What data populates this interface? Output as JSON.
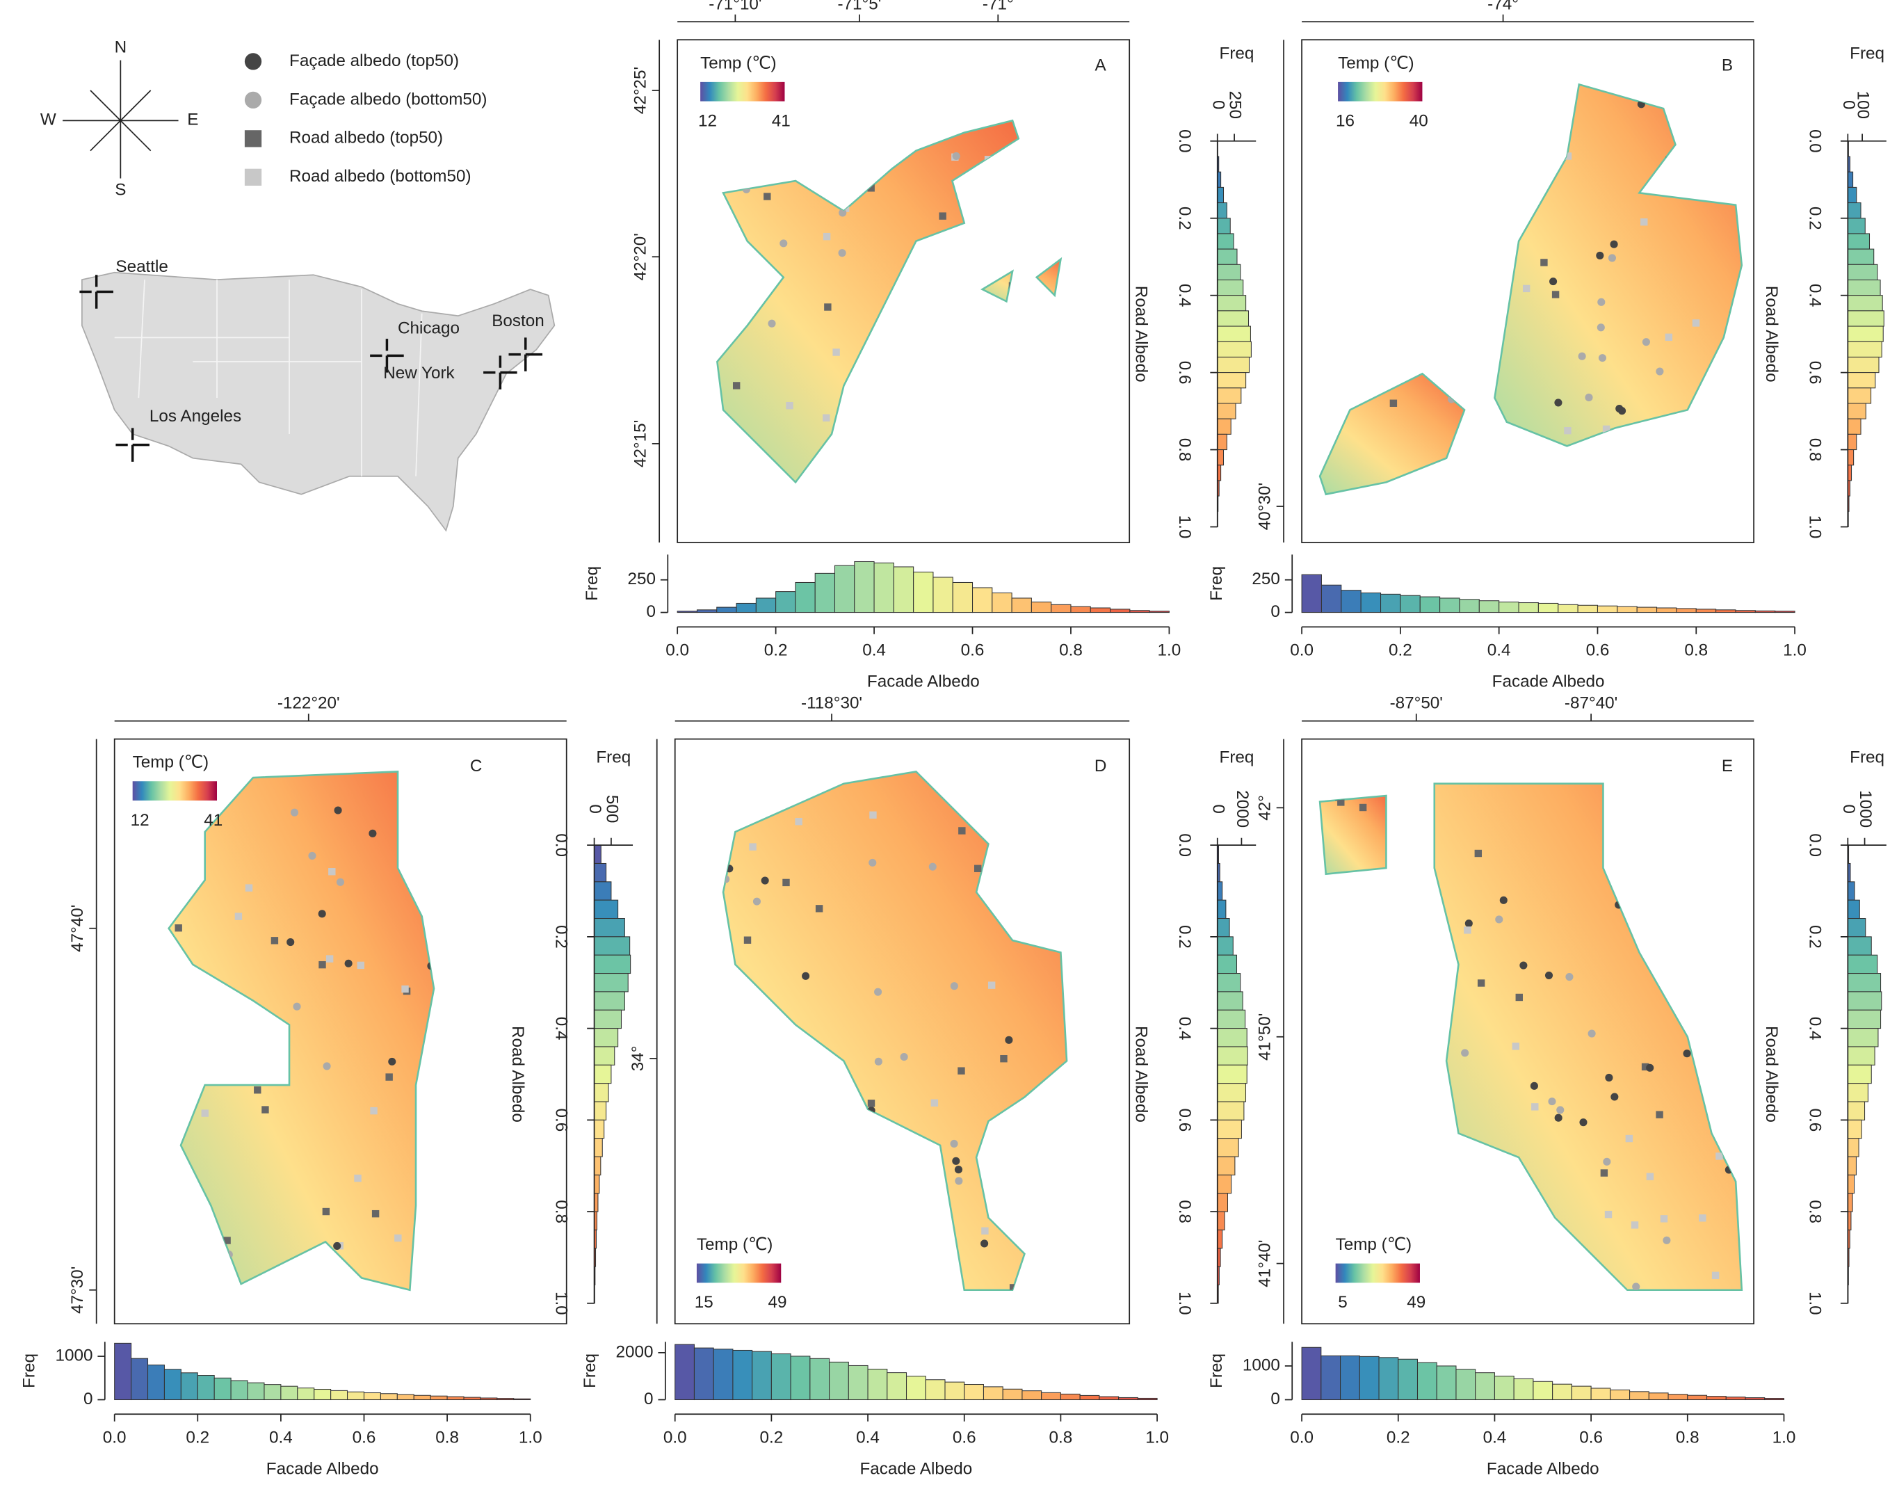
{
  "legend": {
    "compass": {
      "n": "N",
      "s": "S",
      "e": "E",
      "w": "W"
    },
    "items": [
      {
        "label": "Façade albedo (top50)"
      },
      {
        "label": "Façade albedo (bottom50)"
      },
      {
        "label": "Road albedo (top50)"
      },
      {
        "label": "Road albedo (bottom50)"
      }
    ]
  },
  "overview_map": {
    "cities": [
      "Seattle",
      "Chicago",
      "Boston",
      "New York",
      "Los Angeles"
    ]
  },
  "colormap": [
    "#5e4fa2",
    "#3288bd",
    "#66c2a5",
    "#abdda4",
    "#e6f598",
    "#fee08b",
    "#fdae61",
    "#f46d43",
    "#d53e4f",
    "#9e0142"
  ],
  "maps": [
    {
      "letter": "A",
      "lon_labels": [
        "-71°10'",
        "-71°5'",
        "-71°"
      ],
      "lat_labels": [
        "42°25'",
        "42°20'",
        "42°15'"
      ],
      "colorbar": {
        "title": "Temp (℃)",
        "min": 12,
        "max": 41
      }
    },
    {
      "letter": "B",
      "lon_labels": [
        "-74°"
      ],
      "lat_labels": [
        "40°30'"
      ],
      "colorbar": {
        "title": "Temp (℃)",
        "min": 16,
        "max": 40
      }
    },
    {
      "letter": "C",
      "lon_labels": [
        "-122°20'"
      ],
      "lat_labels": [
        "47°40'",
        "47°30'"
      ],
      "colorbar": {
        "title": "Temp (℃)",
        "min": 12,
        "max": 41
      }
    },
    {
      "letter": "D",
      "lon_labels": [
        "-118°30'"
      ],
      "lat_labels": [
        "34°"
      ],
      "colorbar": {
        "title": "Temp (℃)",
        "min": 15,
        "max": 49
      }
    },
    {
      "letter": "E",
      "lon_labels": [
        "-87°50'",
        "-87°40'"
      ],
      "lat_labels": [
        "42°",
        "41°50'",
        "41°40'"
      ],
      "colorbar": {
        "title": "Temp (℃)",
        "min": 5,
        "max": 49
      }
    }
  ],
  "chart_data": [
    {
      "type": "histogram",
      "orientation": "vertical",
      "x_label": "Facade Albedo",
      "y_label": "Freq",
      "bins": [
        0,
        0.04,
        0.08,
        0.12,
        0.16,
        0.2,
        0.24,
        0.28,
        0.32,
        0.36,
        0.4,
        0.44,
        0.48,
        0.52,
        0.56,
        0.6,
        0.64,
        0.68,
        0.72,
        0.76,
        0.8,
        0.84,
        0.88,
        0.92,
        0.96,
        1
      ],
      "values": [
        10,
        20,
        40,
        70,
        110,
        160,
        230,
        300,
        360,
        390,
        380,
        350,
        310,
        270,
        230,
        190,
        150,
        110,
        80,
        60,
        45,
        35,
        25,
        15,
        10
      ],
      "xlim": [
        0,
        1
      ],
      "xticks": [
        {
          "value": 0,
          "label": "0.0"
        },
        0.2,
        0.4,
        0.6,
        0.8,
        {
          "value": 1,
          "label": "1.0"
        }
      ],
      "ylim": [
        0,
        444
      ],
      "yticks": [
        0,
        250
      ]
    },
    {
      "type": "histogram",
      "orientation": "vertical",
      "x_label": "Facade Albedo",
      "y_label": "Freq",
      "bins": [
        0,
        0.04,
        0.08,
        0.12,
        0.16,
        0.2,
        0.24,
        0.28,
        0.32,
        0.36,
        0.4,
        0.44,
        0.48,
        0.52,
        0.56,
        0.6,
        0.64,
        0.68,
        0.72,
        0.76,
        0.8,
        0.84,
        0.88,
        0.92,
        0.96,
        1
      ],
      "values": [
        290,
        210,
        170,
        150,
        140,
        130,
        120,
        110,
        100,
        90,
        80,
        75,
        70,
        60,
        55,
        50,
        45,
        40,
        35,
        30,
        25,
        20,
        15,
        12,
        10
      ],
      "xlim": [
        0,
        1
      ],
      "xticks": [
        {
          "value": 0,
          "label": "0.0"
        },
        0.2,
        0.4,
        0.6,
        0.8,
        {
          "value": 1,
          "label": "1.0"
        }
      ],
      "ylim": [
        0,
        444
      ],
      "yticks": [
        0,
        250
      ]
    },
    {
      "type": "histogram",
      "orientation": "horizontal",
      "x_label": "Road Albedo",
      "y_label": "Freq",
      "bins": [
        0,
        0.04,
        0.08,
        0.12,
        0.16,
        0.2,
        0.24,
        0.28,
        0.32,
        0.36,
        0.4,
        0.44,
        0.48,
        0.52,
        0.56,
        0.6,
        0.64,
        0.68,
        0.72,
        0.76,
        0.8,
        0.84,
        0.88,
        0.92,
        0.96,
        1
      ],
      "values": [
        5,
        20,
        50,
        90,
        140,
        190,
        240,
        290,
        340,
        380,
        420,
        460,
        490,
        500,
        470,
        420,
        350,
        270,
        200,
        140,
        90,
        50,
        25,
        10,
        5
      ],
      "xlim": [
        0,
        1
      ],
      "xticks": [
        {
          "value": 0,
          "label": "0.0"
        },
        0.2,
        0.4,
        0.6,
        0.8,
        {
          "value": 1,
          "label": "1.0"
        }
      ],
      "ylim": [
        0,
        570
      ],
      "yticks": [
        0,
        250
      ]
    },
    {
      "type": "histogram",
      "orientation": "horizontal",
      "x_label": "Road Albedo",
      "y_label": "Freq",
      "bins": [
        0,
        0.04,
        0.08,
        0.12,
        0.16,
        0.2,
        0.24,
        0.28,
        0.32,
        0.36,
        0.4,
        0.44,
        0.48,
        0.52,
        0.56,
        0.6,
        0.64,
        0.68,
        0.72,
        0.76,
        0.8,
        0.84,
        0.88,
        0.92,
        0.96,
        1
      ],
      "values": [
        5,
        15,
        35,
        60,
        90,
        120,
        150,
        180,
        205,
        225,
        240,
        250,
        245,
        235,
        215,
        190,
        160,
        125,
        90,
        60,
        40,
        25,
        15,
        8,
        4
      ],
      "xlim": [
        0,
        1
      ],
      "xticks": [
        {
          "value": 0,
          "label": "0.0"
        },
        0.2,
        0.4,
        0.6,
        0.8,
        {
          "value": 1,
          "label": "1.0"
        }
      ],
      "ylim": [
        0,
        267
      ],
      "yticks": [
        0,
        100
      ]
    },
    {
      "type": "histogram",
      "orientation": "vertical",
      "x_label": "Facade Albedo",
      "y_label": "Freq",
      "bins": [
        0,
        0.04,
        0.08,
        0.12,
        0.16,
        0.2,
        0.24,
        0.28,
        0.32,
        0.36,
        0.4,
        0.44,
        0.48,
        0.52,
        0.56,
        0.6,
        0.64,
        0.68,
        0.72,
        0.76,
        0.8,
        0.84,
        0.88,
        0.92,
        0.96,
        1
      ],
      "values": [
        1300,
        950,
        800,
        700,
        620,
        560,
        500,
        440,
        390,
        350,
        310,
        270,
        240,
        210,
        180,
        160,
        140,
        120,
        100,
        85,
        70,
        55,
        40,
        30,
        20
      ],
      "xlim": [
        0,
        1
      ],
      "xticks": [
        {
          "value": 0,
          "label": "0.0"
        },
        0.2,
        0.4,
        0.6,
        0.8,
        {
          "value": 1,
          "label": "1.0"
        }
      ],
      "ylim": [
        0,
        1333
      ],
      "yticks": [
        0,
        1000
      ]
    },
    {
      "type": "histogram",
      "orientation": "vertical",
      "x_label": "Facade Albedo",
      "y_label": "Freq",
      "bins": [
        0,
        0.04,
        0.08,
        0.12,
        0.16,
        0.2,
        0.24,
        0.28,
        0.32,
        0.36,
        0.4,
        0.44,
        0.48,
        0.52,
        0.56,
        0.6,
        0.64,
        0.68,
        0.72,
        0.76,
        0.8,
        0.84,
        0.88,
        0.92,
        0.96,
        1
      ],
      "values": [
        2350,
        2200,
        2150,
        2100,
        2050,
        1950,
        1850,
        1750,
        1600,
        1450,
        1300,
        1150,
        1000,
        850,
        750,
        650,
        550,
        450,
        380,
        300,
        240,
        180,
        130,
        90,
        60
      ],
      "xlim": [
        0,
        1
      ],
      "xticks": [
        {
          "value": 0,
          "label": "0.0"
        },
        0.2,
        0.4,
        0.6,
        0.8,
        {
          "value": 1,
          "label": "1.0"
        }
      ],
      "ylim": [
        0,
        2460
      ],
      "yticks": [
        0,
        2000
      ]
    },
    {
      "type": "histogram",
      "orientation": "vertical",
      "x_label": "Facade Albedo",
      "y_label": "Freq",
      "bins": [
        0,
        0.04,
        0.08,
        0.12,
        0.16,
        0.2,
        0.24,
        0.28,
        0.32,
        0.36,
        0.4,
        0.44,
        0.48,
        0.52,
        0.56,
        0.6,
        0.64,
        0.68,
        0.72,
        0.76,
        0.8,
        0.84,
        0.88,
        0.92,
        0.96,
        1
      ],
      "values": [
        1550,
        1300,
        1300,
        1280,
        1250,
        1200,
        1100,
        1000,
        900,
        800,
        700,
        620,
        540,
        460,
        400,
        340,
        290,
        240,
        200,
        160,
        130,
        100,
        80,
        60,
        40
      ],
      "xlim": [
        0,
        1
      ],
      "xticks": [
        {
          "value": 0,
          "label": "0.0"
        },
        0.2,
        0.4,
        0.6,
        0.8,
        {
          "value": 1,
          "label": "1.0"
        }
      ],
      "ylim": [
        0,
        1714
      ],
      "yticks": [
        0,
        1000
      ]
    },
    {
      "type": "histogram",
      "orientation": "horizontal",
      "x_label": "Road Albedo",
      "y_label": "Freq",
      "bins": [
        0,
        0.04,
        0.08,
        0.12,
        0.16,
        0.2,
        0.24,
        0.28,
        0.32,
        0.36,
        0.4,
        0.44,
        0.48,
        0.52,
        0.56,
        0.6,
        0.64,
        0.68,
        0.72,
        0.76,
        0.8,
        0.84,
        0.88,
        0.92,
        0.96,
        1
      ],
      "values": [
        200,
        350,
        500,
        700,
        900,
        1050,
        1070,
        1000,
        900,
        800,
        700,
        600,
        500,
        420,
        350,
        290,
        240,
        190,
        150,
        110,
        80,
        60,
        40,
        25,
        15
      ],
      "xlim": [
        0,
        1
      ],
      "xticks": [
        {
          "value": 0,
          "label": "0.0"
        },
        0.2,
        0.4,
        0.6,
        0.8,
        {
          "value": 1,
          "label": "1.0"
        }
      ],
      "ylim": [
        0,
        1140
      ],
      "yticks": [
        0,
        500
      ]
    },
    {
      "type": "histogram",
      "orientation": "horizontal",
      "x_label": "Road Albedo",
      "y_label": "Freq",
      "bins": [
        0,
        0.04,
        0.08,
        0.12,
        0.16,
        0.2,
        0.24,
        0.28,
        0.32,
        0.36,
        0.4,
        0.44,
        0.48,
        0.52,
        0.56,
        0.6,
        0.64,
        0.68,
        0.72,
        0.76,
        0.8,
        0.84,
        0.88,
        0.92,
        0.96,
        1
      ],
      "values": [
        100,
        200,
        400,
        700,
        1000,
        1300,
        1600,
        1900,
        2100,
        2300,
        2450,
        2500,
        2450,
        2350,
        2200,
        2000,
        1750,
        1450,
        1150,
        850,
        600,
        400,
        250,
        150,
        80
      ],
      "xlim": [
        0,
        1
      ],
      "xticks": [
        {
          "value": 0,
          "label": "0.0"
        },
        0.2,
        0.4,
        0.6,
        0.8,
        {
          "value": 1,
          "label": "1.0"
        }
      ],
      "ylim": [
        0,
        3200
      ],
      "yticks": [
        0,
        2000
      ]
    },
    {
      "type": "histogram",
      "orientation": "horizontal",
      "x_label": "Road Albedo",
      "y_label": "Freq",
      "bins": [
        0,
        0.04,
        0.08,
        0.12,
        0.16,
        0.2,
        0.24,
        0.28,
        0.32,
        0.36,
        0.4,
        0.44,
        0.48,
        0.52,
        0.56,
        0.6,
        0.64,
        0.68,
        0.72,
        0.76,
        0.8,
        0.84,
        0.88,
        0.92,
        0.96,
        1
      ],
      "values": [
        50,
        150,
        400,
        700,
        1050,
        1400,
        1750,
        1950,
        2000,
        1950,
        1800,
        1600,
        1400,
        1200,
        1000,
        820,
        650,
        500,
        380,
        280,
        190,
        120,
        70,
        40,
        20
      ],
      "xlim": [
        0,
        1
      ],
      "xticks": [
        {
          "value": 0,
          "label": "0.0"
        },
        0.2,
        0.4,
        0.6,
        0.8,
        {
          "value": 1,
          "label": "1.0"
        }
      ],
      "ylim": [
        0,
        2290
      ],
      "yticks": [
        0,
        1000
      ]
    }
  ]
}
